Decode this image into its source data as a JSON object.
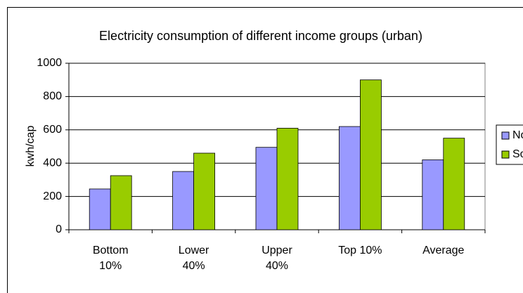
{
  "chart_data": {
    "type": "bar",
    "title": "Electricity consumption of different income groups (urban)",
    "y_label": "kwh/cap",
    "categories": [
      "Bottom 10%",
      "Lower 40%",
      "Upper 40%",
      "Top 10%",
      "Average"
    ],
    "series": [
      {
        "name": "North",
        "color": "#9999ff",
        "values": [
          245,
          350,
          495,
          620,
          420
        ]
      },
      {
        "name": "South",
        "color": "#99cc00",
        "values": [
          325,
          460,
          610,
          900,
          550
        ]
      }
    ],
    "ylim": [
      0,
      1000
    ],
    "yticks": [
      0,
      200,
      400,
      600,
      800,
      1000
    ],
    "grid": true,
    "legend": "right"
  }
}
